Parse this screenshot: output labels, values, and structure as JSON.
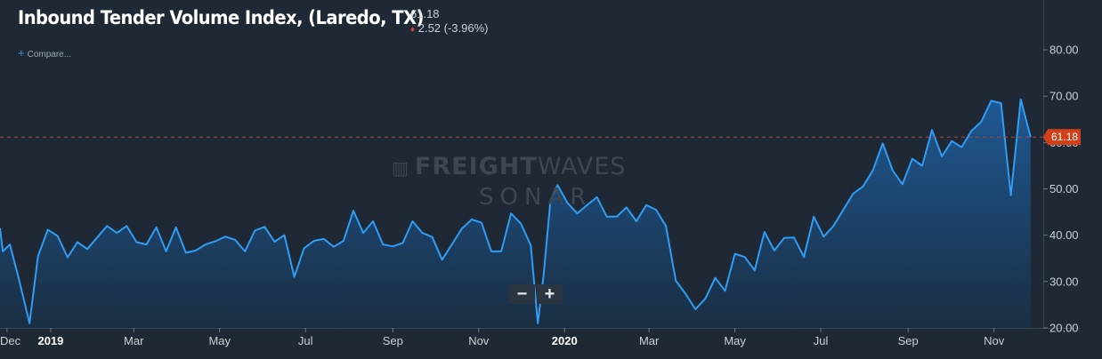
{
  "header": {
    "title": "Inbound Tender Volume Index, (Laredo, TX)",
    "price": "61.18",
    "change": "2.52 (-3.96%)",
    "compare_label": "Compare..."
  },
  "watermark": {
    "line1_bold": "FREIGHT",
    "line1_light": "WAVES",
    "line2": "SONAR"
  },
  "zoom": {
    "minus": "−",
    "plus": "+"
  },
  "colors": {
    "background": "#1e2935",
    "line": "#2f9df5",
    "fill_top": "#1e5c99",
    "fill_bottom": "#1a2f45",
    "price_tag": "#d2401a",
    "down": "#e0393e"
  },
  "chart_data": {
    "type": "area",
    "title": "Inbound Tender Volume Index, (Laredo, TX)",
    "xlabel": "",
    "ylabel": "",
    "ylim": [
      20,
      85
    ],
    "y_ticks": [
      "80.00",
      "70.00",
      "60.00",
      "50.00",
      "40.00",
      "30.00",
      "20.00"
    ],
    "x_ticks": [
      {
        "label": "Dec",
        "date": "2018-12-01"
      },
      {
        "label": "2019",
        "date": "2019-01-01"
      },
      {
        "label": "Mar",
        "date": "2019-03-01"
      },
      {
        "label": "May",
        "date": "2019-05-01"
      },
      {
        "label": "Jul",
        "date": "2019-07-01"
      },
      {
        "label": "Sep",
        "date": "2019-09-01"
      },
      {
        "label": "Nov",
        "date": "2019-11-01"
      },
      {
        "label": "2020",
        "date": "2020-01-01"
      },
      {
        "label": "Mar",
        "date": "2020-03-01"
      },
      {
        "label": "May",
        "date": "2020-05-01"
      },
      {
        "label": "Jul",
        "date": "2020-07-01"
      },
      {
        "label": "Sep",
        "date": "2020-09-01"
      },
      {
        "label": "Nov",
        "date": "2020-11-01"
      }
    ],
    "x_range": [
      "2018-11-26",
      "2020-12-06"
    ],
    "last_value": "61.18",
    "grid": false,
    "series": [
      {
        "points": [
          [
            "2018-11-26",
            41.5
          ],
          [
            "2018-11-28",
            36.5
          ],
          [
            "2018-12-03",
            38
          ],
          [
            "2018-12-09",
            31
          ],
          [
            "2018-12-17",
            21
          ],
          [
            "2018-12-23",
            35.5
          ],
          [
            "2018-12-30",
            41.2
          ],
          [
            "2019-01-06",
            39.8
          ],
          [
            "2019-01-13",
            35.2
          ],
          [
            "2019-01-20",
            38.5
          ],
          [
            "2019-01-27",
            37
          ],
          [
            "2019-02-03",
            39.5
          ],
          [
            "2019-02-10",
            42
          ],
          [
            "2019-02-17",
            40.5
          ],
          [
            "2019-02-24",
            42
          ],
          [
            "2019-03-03",
            38.5
          ],
          [
            "2019-03-10",
            38
          ],
          [
            "2019-03-17",
            41.7
          ],
          [
            "2019-03-24",
            36.5
          ],
          [
            "2019-03-31",
            41.7
          ],
          [
            "2019-04-07",
            36.2
          ],
          [
            "2019-04-14",
            36.7
          ],
          [
            "2019-04-21",
            38
          ],
          [
            "2019-04-28",
            38.7
          ],
          [
            "2019-05-05",
            39.7
          ],
          [
            "2019-05-12",
            39
          ],
          [
            "2019-05-19",
            36.5
          ],
          [
            "2019-05-26",
            41
          ],
          [
            "2019-06-02",
            41.8
          ],
          [
            "2019-06-09",
            38.6
          ],
          [
            "2019-06-16",
            40
          ],
          [
            "2019-06-23",
            31
          ],
          [
            "2019-06-30",
            37.2
          ],
          [
            "2019-07-07",
            38.8
          ],
          [
            "2019-07-14",
            39.2
          ],
          [
            "2019-07-21",
            37.5
          ],
          [
            "2019-07-28",
            38.8
          ],
          [
            "2019-08-04",
            45.3
          ],
          [
            "2019-08-11",
            40.5
          ],
          [
            "2019-08-18",
            43
          ],
          [
            "2019-08-25",
            38
          ],
          [
            "2019-09-01",
            37.6
          ],
          [
            "2019-09-08",
            38.3
          ],
          [
            "2019-09-15",
            43
          ],
          [
            "2019-09-22",
            40.5
          ],
          [
            "2019-09-29",
            39.6
          ],
          [
            "2019-10-06",
            34.7
          ],
          [
            "2019-10-13",
            38
          ],
          [
            "2019-10-20",
            41.4
          ],
          [
            "2019-10-27",
            43.4
          ],
          [
            "2019-11-03",
            42.7
          ],
          [
            "2019-11-10",
            36.5
          ],
          [
            "2019-11-17",
            36.5
          ],
          [
            "2019-11-24",
            44.7
          ],
          [
            "2019-12-01",
            42.5
          ],
          [
            "2019-12-08",
            37.8
          ],
          [
            "2019-12-13",
            21
          ],
          [
            "2019-12-17",
            31
          ],
          [
            "2019-12-22",
            47.5
          ],
          [
            "2019-12-27",
            50.8
          ],
          [
            "2020-01-03",
            47
          ],
          [
            "2020-01-10",
            44.7
          ],
          [
            "2020-01-17",
            46.5
          ],
          [
            "2020-01-24",
            48.2
          ],
          [
            "2020-01-31",
            44
          ],
          [
            "2020-02-07",
            44
          ],
          [
            "2020-02-14",
            46
          ],
          [
            "2020-02-21",
            43
          ],
          [
            "2020-02-28",
            46.5
          ],
          [
            "2020-03-06",
            45.5
          ],
          [
            "2020-03-13",
            42
          ],
          [
            "2020-03-20",
            30.2
          ],
          [
            "2020-03-27",
            27.3
          ],
          [
            "2020-04-03",
            24
          ],
          [
            "2020-04-10",
            26.3
          ],
          [
            "2020-04-17",
            30.8
          ],
          [
            "2020-04-24",
            28
          ],
          [
            "2020-05-01",
            36
          ],
          [
            "2020-05-08",
            35.3
          ],
          [
            "2020-05-15",
            32.4
          ],
          [
            "2020-05-22",
            40.7
          ],
          [
            "2020-05-29",
            36.7
          ],
          [
            "2020-06-05",
            39.4
          ],
          [
            "2020-06-12",
            39.5
          ],
          [
            "2020-06-19",
            35.3
          ],
          [
            "2020-06-26",
            44
          ],
          [
            "2020-07-03",
            39.7
          ],
          [
            "2020-07-10",
            42
          ],
          [
            "2020-07-17",
            45.5
          ],
          [
            "2020-07-24",
            49
          ],
          [
            "2020-07-31",
            50.5
          ],
          [
            "2020-08-07",
            54
          ],
          [
            "2020-08-14",
            59.8
          ],
          [
            "2020-08-21",
            54
          ],
          [
            "2020-08-28",
            51
          ],
          [
            "2020-09-04",
            56.5
          ],
          [
            "2020-09-11",
            55
          ],
          [
            "2020-09-18",
            62.7
          ],
          [
            "2020-09-25",
            57
          ],
          [
            "2020-10-02",
            60.3
          ],
          [
            "2020-10-09",
            59
          ],
          [
            "2020-10-16",
            62.5
          ],
          [
            "2020-10-23",
            64.5
          ],
          [
            "2020-10-30",
            69
          ],
          [
            "2020-11-06",
            68.5
          ],
          [
            "2020-11-13",
            48.6
          ],
          [
            "2020-11-20",
            69.3
          ],
          [
            "2020-11-27",
            61.18
          ]
        ]
      }
    ]
  }
}
